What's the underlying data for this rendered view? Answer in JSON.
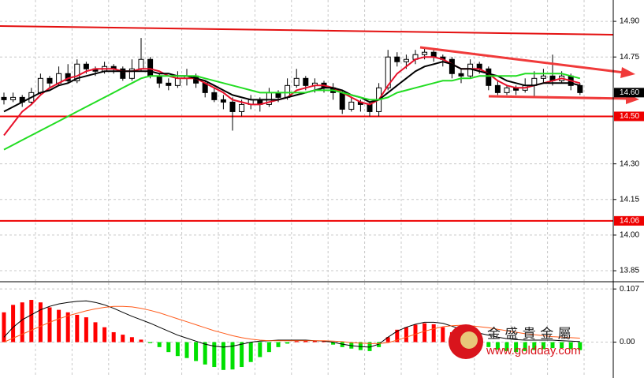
{
  "chart_data": {
    "type": "candlestick",
    "ohlc": [
      [
        14.58,
        14.6,
        14.55,
        14.57
      ],
      [
        14.57,
        14.6,
        14.56,
        14.58
      ],
      [
        14.58,
        14.59,
        14.54,
        14.56
      ],
      [
        14.56,
        14.62,
        14.55,
        14.6
      ],
      [
        14.6,
        14.68,
        14.59,
        14.66
      ],
      [
        14.66,
        14.67,
        14.62,
        14.64
      ],
      [
        14.64,
        14.71,
        14.63,
        14.68
      ],
      [
        14.68,
        14.72,
        14.64,
        14.65
      ],
      [
        14.65,
        14.74,
        14.64,
        14.72
      ],
      [
        14.72,
        14.73,
        14.68,
        14.7
      ],
      [
        14.7,
        14.71,
        14.67,
        14.69
      ],
      [
        14.69,
        14.73,
        14.68,
        14.71
      ],
      [
        14.71,
        14.72,
        14.68,
        14.7
      ],
      [
        14.7,
        14.71,
        14.65,
        14.66
      ],
      [
        14.66,
        14.74,
        14.65,
        14.7
      ],
      [
        14.7,
        14.83,
        14.69,
        14.74
      ],
      [
        14.74,
        14.75,
        14.66,
        14.67
      ],
      [
        14.67,
        14.68,
        14.62,
        14.64
      ],
      [
        14.64,
        14.66,
        14.61,
        14.63
      ],
      [
        14.63,
        14.69,
        14.62,
        14.66
      ],
      [
        14.66,
        14.7,
        14.63,
        14.67
      ],
      [
        14.67,
        14.68,
        14.62,
        14.64
      ],
      [
        14.64,
        14.65,
        14.58,
        14.6
      ],
      [
        14.6,
        14.62,
        14.56,
        14.57
      ],
      [
        14.57,
        14.59,
        14.53,
        14.56
      ],
      [
        14.56,
        14.58,
        14.44,
        14.52
      ],
      [
        14.52,
        14.57,
        14.5,
        14.55
      ],
      [
        14.55,
        14.59,
        14.53,
        14.57
      ],
      [
        14.57,
        14.58,
        14.52,
        14.55
      ],
      [
        14.55,
        14.62,
        14.54,
        14.6
      ],
      [
        14.6,
        14.61,
        14.56,
        14.58
      ],
      [
        14.58,
        14.66,
        14.57,
        14.63
      ],
      [
        14.63,
        14.7,
        14.62,
        14.66
      ],
      [
        14.66,
        14.67,
        14.61,
        14.63
      ],
      [
        14.63,
        14.66,
        14.6,
        14.64
      ],
      [
        14.64,
        14.65,
        14.6,
        14.62
      ],
      [
        14.62,
        14.64,
        14.57,
        14.6
      ],
      [
        14.6,
        14.61,
        14.51,
        14.53
      ],
      [
        14.53,
        14.58,
        14.52,
        14.56
      ],
      [
        14.56,
        14.57,
        14.52,
        14.55
      ],
      [
        14.55,
        14.56,
        14.5,
        14.52
      ],
      [
        14.52,
        14.64,
        14.5,
        14.62
      ],
      [
        14.62,
        14.78,
        14.61,
        14.75
      ],
      [
        14.75,
        14.77,
        14.71,
        14.73
      ],
      [
        14.73,
        14.76,
        14.7,
        14.74
      ],
      [
        14.74,
        14.78,
        14.72,
        14.76
      ],
      [
        14.76,
        14.79,
        14.74,
        14.77
      ],
      [
        14.77,
        14.78,
        14.73,
        14.75
      ],
      [
        14.75,
        14.76,
        14.71,
        14.74
      ],
      [
        14.74,
        14.75,
        14.66,
        14.68
      ],
      [
        14.68,
        14.7,
        14.64,
        14.67
      ],
      [
        14.67,
        14.74,
        14.66,
        14.72
      ],
      [
        14.72,
        14.73,
        14.68,
        14.7
      ],
      [
        14.7,
        14.71,
        14.61,
        14.63
      ],
      [
        14.63,
        14.65,
        14.59,
        14.6
      ],
      [
        14.6,
        14.63,
        14.59,
        14.62
      ],
      [
        14.62,
        14.63,
        14.59,
        14.61
      ],
      [
        14.61,
        14.66,
        14.6,
        14.63
      ],
      [
        14.63,
        14.69,
        14.58,
        14.66
      ],
      [
        14.66,
        14.7,
        14.64,
        14.67
      ],
      [
        14.67,
        14.76,
        14.63,
        14.65
      ],
      [
        14.65,
        14.69,
        14.64,
        14.67
      ],
      [
        14.67,
        14.68,
        14.61,
        14.63
      ],
      [
        14.63,
        14.64,
        14.59,
        14.6
      ]
    ],
    "series": [
      {
        "color": "#e8102a",
        "values": [
          14.42,
          14.47,
          14.52,
          14.55,
          14.59,
          14.62,
          14.64,
          14.66,
          14.67,
          14.69,
          14.7,
          14.7,
          14.7,
          14.69,
          14.69,
          14.7,
          14.7,
          14.69,
          14.67,
          14.66,
          14.66,
          14.66,
          14.64,
          14.62,
          14.6,
          14.57,
          14.56,
          14.55,
          14.55,
          14.56,
          14.57,
          14.58,
          14.61,
          14.62,
          14.63,
          14.63,
          14.62,
          14.6,
          14.58,
          14.56,
          14.55,
          14.57,
          14.63,
          14.68,
          14.71,
          14.74,
          14.75,
          14.75,
          14.74,
          14.72,
          14.7,
          14.7,
          14.7,
          14.68,
          14.65,
          14.63,
          14.62,
          14.62,
          14.63,
          14.64,
          14.65,
          14.66,
          14.65,
          14.64
        ]
      },
      {
        "color": "#000000",
        "values": [
          14.52,
          14.54,
          14.56,
          14.58,
          14.6,
          14.61,
          14.63,
          14.64,
          14.66,
          14.67,
          14.68,
          14.69,
          14.69,
          14.69,
          14.69,
          14.69,
          14.69,
          14.68,
          14.68,
          14.67,
          14.67,
          14.66,
          14.65,
          14.63,
          14.61,
          14.59,
          14.58,
          14.57,
          14.57,
          14.57,
          14.57,
          14.58,
          14.59,
          14.6,
          14.61,
          14.62,
          14.62,
          14.61,
          14.59,
          14.58,
          14.56,
          14.57,
          14.6,
          14.63,
          14.66,
          14.69,
          14.71,
          14.72,
          14.73,
          14.72,
          14.7,
          14.7,
          14.69,
          14.68,
          14.67,
          14.65,
          14.64,
          14.63,
          14.63,
          14.64,
          14.64,
          14.64,
          14.64,
          14.63
        ]
      },
      {
        "color": "#22dd22",
        "values": [
          14.36,
          14.38,
          14.4,
          14.42,
          14.44,
          14.46,
          14.48,
          14.5,
          14.52,
          14.54,
          14.56,
          14.58,
          14.6,
          14.62,
          14.64,
          14.66,
          14.67,
          14.67,
          14.67,
          14.67,
          14.67,
          14.67,
          14.66,
          14.65,
          14.64,
          14.63,
          14.62,
          14.61,
          14.6,
          14.6,
          14.6,
          14.6,
          14.6,
          14.6,
          14.61,
          14.61,
          14.61,
          14.6,
          14.59,
          14.58,
          14.57,
          14.57,
          14.58,
          14.6,
          14.61,
          14.62,
          14.63,
          14.64,
          14.65,
          14.65,
          14.66,
          14.66,
          14.67,
          14.67,
          14.67,
          14.67,
          14.67,
          14.68,
          14.68,
          14.68,
          14.68,
          14.68,
          14.67,
          14.66
        ]
      }
    ],
    "ylim": [
      13.807,
      14.99
    ],
    "yticks": [
      {
        "value": 14.9,
        "label": "14.90"
      },
      {
        "value": 14.75,
        "label": "14.75"
      },
      {
        "value": 14.3,
        "label": "14.30"
      },
      {
        "value": 14.15,
        "label": "14.15"
      },
      {
        "value": 14.0,
        "label": "14.00"
      },
      {
        "value": 13.85,
        "label": "13.85"
      }
    ],
    "grid": true,
    "levels": [
      {
        "value": 14.5,
        "label": "14.50"
      },
      {
        "value": 14.06,
        "label": "14.06"
      }
    ],
    "level_color": "#ee0000",
    "last_price": {
      "value": 14.6,
      "label": "14.60"
    },
    "macd": {
      "ylim": [
        -0.069,
        0.12
      ],
      "yticks": [
        {
          "value": 0.107,
          "label": "0.107"
        },
        {
          "value": 0,
          "label": "0.00"
        }
      ],
      "up_color": "#ff0000",
      "down_color": "#00e000",
      "histogram": [
        0.06,
        0.075,
        0.08,
        0.085,
        0.08,
        0.07,
        0.065,
        0.06,
        0.055,
        0.05,
        0.04,
        0.03,
        0.02,
        0.015,
        0.01,
        0.005,
        -0.002,
        -0.01,
        -0.02,
        -0.028,
        -0.032,
        -0.038,
        -0.045,
        -0.05,
        -0.056,
        -0.055,
        -0.05,
        -0.04,
        -0.03,
        -0.02,
        -0.01,
        -0.003,
        0.002,
        0.004,
        0.003,
        0.002,
        -0.005,
        -0.01,
        -0.013,
        -0.016,
        -0.018,
        -0.01,
        0.01,
        0.025,
        0.03,
        0.035,
        0.038,
        0.036,
        0.03,
        0.02,
        0.01,
        0.005,
        -0.005,
        -0.01,
        -0.015,
        -0.018,
        -0.02,
        -0.018,
        -0.016,
        -0.014,
        -0.012,
        -0.012,
        -0.014,
        -0.016
      ],
      "lines": [
        {
          "color": "#000000",
          "values": [
            0.01,
            0.03,
            0.045,
            0.055,
            0.065,
            0.072,
            0.077,
            0.08,
            0.082,
            0.083,
            0.08,
            0.075,
            0.068,
            0.06,
            0.052,
            0.045,
            0.038,
            0.03,
            0.022,
            0.014,
            0.008,
            0.002,
            -0.004,
            -0.008,
            -0.01,
            -0.008,
            -0.004,
            0,
            0.002,
            0.003,
            0.004,
            0.004,
            0.004,
            0.004,
            0.003,
            0.002,
            0,
            -0.004,
            -0.007,
            -0.009,
            -0.01,
            -0.004,
            0.01,
            0.022,
            0.03,
            0.036,
            0.04,
            0.04,
            0.038,
            0.032,
            0.026,
            0.022,
            0.018,
            0.014,
            0.01,
            0.007,
            0.005,
            0.004,
            0.004,
            0.004,
            0.004,
            0.003,
            0.002,
            0.001
          ]
        },
        {
          "color": "#ff5a1a",
          "values": [
            0,
            0.008,
            0.016,
            0.024,
            0.032,
            0.04,
            0.047,
            0.053,
            0.058,
            0.063,
            0.067,
            0.07,
            0.072,
            0.072,
            0.071,
            0.068,
            0.064,
            0.059,
            0.053,
            0.047,
            0.041,
            0.035,
            0.029,
            0.023,
            0.018,
            0.013,
            0.009,
            0.006,
            0.004,
            0.003,
            0.003,
            0.003,
            0.003,
            0.003,
            0.003,
            0.003,
            0.002,
            0.001,
            -0.001,
            -0.002,
            -0.003,
            -0.003,
            -0.001,
            0.004,
            0.01,
            0.016,
            0.022,
            0.027,
            0.031,
            0.033,
            0.034,
            0.033,
            0.031,
            0.029,
            0.026,
            0.023,
            0.02,
            0.017,
            0.015,
            0.013,
            0.011,
            0.01,
            0.009,
            0.008
          ]
        }
      ]
    },
    "watermark": {
      "name": "金 盛 貴 金 屬",
      "url": "www.goldday.com"
    }
  }
}
